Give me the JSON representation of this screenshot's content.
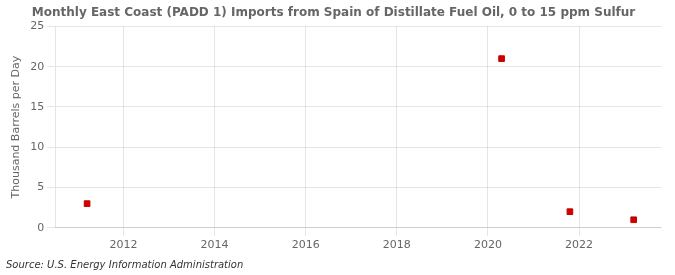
{
  "chart_data": {
    "type": "scatter",
    "title": "Monthly East Coast (PADD 1) Imports from Spain of Distillate Fuel Oil, 0 to 15 ppm Sulfur",
    "ylabel": "Thousand Barrels per Day",
    "annotations": [
      "Source: U.S. Energy Information Administration"
    ],
    "x": [
      2011.2,
      2020.3,
      2021.8,
      2023.2
    ],
    "values": [
      3.0,
      21.0,
      2.0,
      1.0
    ],
    "color": "#cc0000",
    "marker": "square",
    "xlim": [
      2010.5,
      2023.8
    ],
    "ylim": [
      0,
      25
    ],
    "xticks": [
      2012,
      2014,
      2016,
      2018,
      2020,
      2022
    ],
    "yticks": [
      0,
      5,
      10,
      15,
      20,
      25
    ],
    "grid": true
  }
}
